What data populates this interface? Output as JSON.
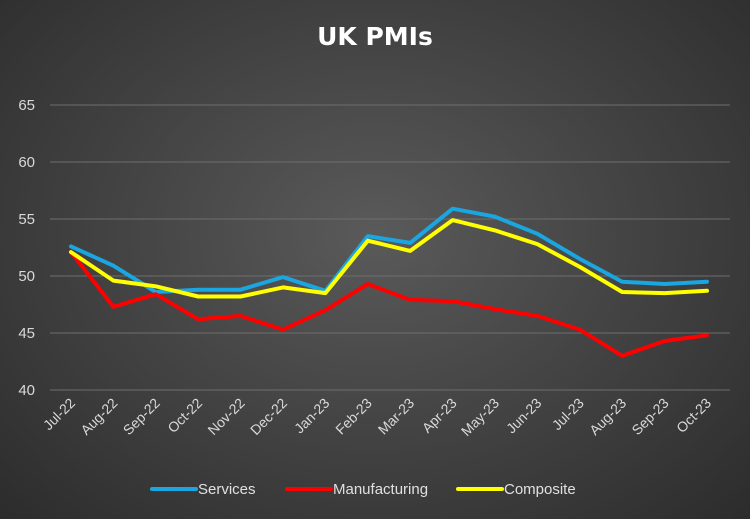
{
  "chart_data": {
    "type": "line",
    "title": "UK PMIs",
    "xlabel": "",
    "ylabel": "",
    "categories": [
      "Jul-22",
      "Aug-22",
      "Sep-22",
      "Oct-22",
      "Nov-22",
      "Dec-22",
      "Jan-23",
      "Feb-23",
      "Mar-23",
      "Apr-23",
      "May-23",
      "Jun-23",
      "Jul-23",
      "Aug-23",
      "Sep-23",
      "Oct-23"
    ],
    "yticks": [
      "40",
      "45",
      "50",
      "55",
      "60",
      "65"
    ],
    "ylim": [
      40,
      65
    ],
    "grid": true,
    "legend_position": "bottom",
    "series": [
      {
        "name": "Services",
        "color": "#1aa6e0",
        "values": [
          52.6,
          50.9,
          48.6,
          48.8,
          48.8,
          49.9,
          48.7,
          53.5,
          52.9,
          55.9,
          55.2,
          53.7,
          51.5,
          49.5,
          49.3,
          49.5
        ]
      },
      {
        "name": "Manufacturing",
        "color": "#ff0000",
        "values": [
          52.1,
          47.3,
          48.4,
          46.2,
          46.5,
          45.3,
          47.0,
          49.3,
          47.9,
          47.8,
          47.1,
          46.5,
          45.3,
          43.0,
          44.3,
          44.8
        ]
      },
      {
        "name": "Composite",
        "color": "#ffff00",
        "values": [
          52.1,
          49.6,
          49.1,
          48.2,
          48.2,
          49.0,
          48.5,
          53.1,
          52.2,
          54.9,
          54.0,
          52.8,
          50.8,
          48.6,
          48.5,
          48.7
        ]
      }
    ]
  }
}
